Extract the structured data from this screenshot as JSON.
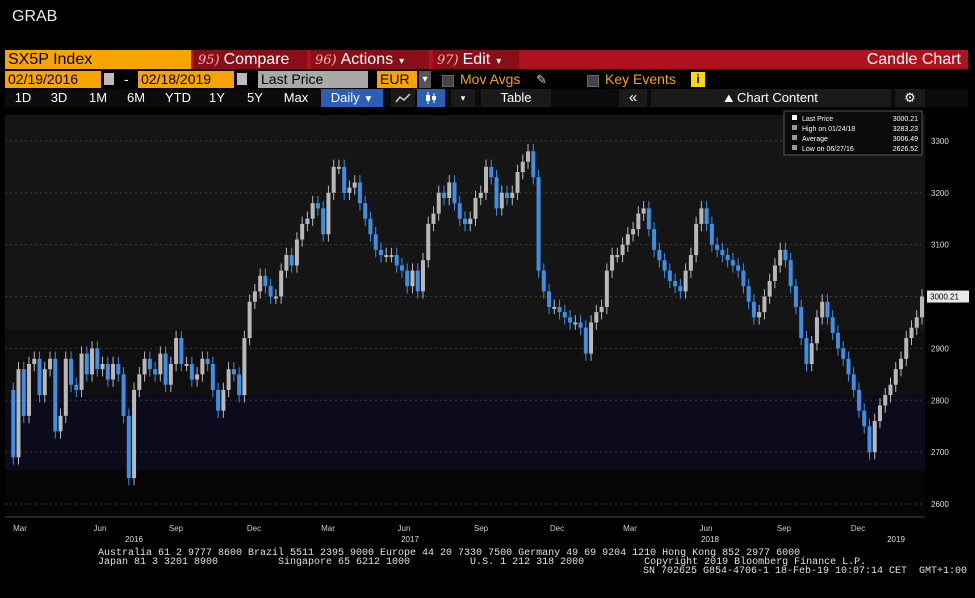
{
  "window_title": "GRAB",
  "toolbar": {
    "ticker": "SX5P Index",
    "menus": [
      {
        "num": "95)",
        "label": "Compare"
      },
      {
        "num": "96)",
        "label": "Actions"
      },
      {
        "num": "97)",
        "label": "Edit"
      }
    ],
    "chart_type": "Candle Chart"
  },
  "settings": {
    "start_date": "02/19/2016",
    "dash": "-",
    "end_date": "02/18/2019",
    "price_field": "Last Price",
    "currency": "EUR",
    "mov_avgs": "Mov Avgs",
    "key_events": "Key Events",
    "info": "i"
  },
  "periods": [
    "1D",
    "3D",
    "1M",
    "6M",
    "YTD",
    "1Y",
    "5Y",
    "Max"
  ],
  "frequency": "Daily",
  "table_label": "Table",
  "collapse_label": "«",
  "chart_content_label": "Chart Content",
  "colors": {
    "up": "#b8b8b8",
    "down": "#3d8fe6",
    "accent": "#f7a300",
    "bar": "#b0111e"
  },
  "legend": [
    {
      "label": "Last Price",
      "value": "3000.21"
    },
    {
      "label": "High on 01/24/18",
      "value": "3283.23"
    },
    {
      "label": "Average",
      "value": "3006.49"
    },
    {
      "label": "Low on 06/27/16",
      "value": "2626.52"
    }
  ],
  "chart_data": {
    "type": "line",
    "ylim": [
      2575,
      3350
    ],
    "yticks": [
      2600,
      2700,
      2800,
      2900,
      3000,
      3100,
      3200,
      3300
    ],
    "ytick_labels": [
      "2600",
      "2700",
      "2800",
      "2900",
      "3000",
      "3100",
      "3200",
      "3300"
    ],
    "last_price_label": "3000.21",
    "x_month_labels": [
      "Mar",
      "Jun",
      "Sep",
      "Dec",
      "Mar",
      "Jun",
      "Sep",
      "Dec",
      "Mar",
      "Jun",
      "Sep",
      "Dec"
    ],
    "x_year_labels": [
      "2016",
      "2017",
      "2018",
      "2019"
    ],
    "series": [
      {
        "values": [
          2820,
          2690,
          2860,
          2770,
          2870,
          2880,
          2810,
          2860,
          2880,
          2740,
          2770,
          2880,
          2830,
          2820,
          2890,
          2850,
          2900,
          2860,
          2870,
          2840,
          2870,
          2850,
          2770,
          2650,
          2820,
          2850,
          2880,
          2860,
          2850,
          2890,
          2830,
          2870,
          2920,
          2870,
          2870,
          2840,
          2850,
          2880,
          2870,
          2820,
          2780,
          2820,
          2860,
          2850,
          2810,
          2920,
          2990,
          3010,
          3040,
          3020,
          3000,
          3000,
          3050,
          3080,
          3060,
          3110,
          3140,
          3150,
          3180,
          3170,
          3120,
          3200,
          3250,
          3250,
          3200,
          3210,
          3220,
          3180,
          3150,
          3120,
          3090,
          3080,
          3080,
          3080,
          3060,
          3050,
          3020,
          3050,
          3010,
          3070,
          3140,
          3160,
          3200,
          3190,
          3220,
          3180,
          3150,
          3140,
          3150,
          3190,
          3200,
          3250,
          3230,
          3170,
          3200,
          3190,
          3200,
          3240,
          3260,
          3280,
          3230,
          3050,
          3010,
          2980,
          2980,
          2970,
          2960,
          2950,
          2950,
          2940,
          2890,
          2950,
          2970,
          2980,
          3050,
          3080,
          3080,
          3100,
          3120,
          3130,
          3160,
          3170,
          3130,
          3090,
          3070,
          3050,
          3030,
          3020,
          3010,
          3050,
          3080,
          3140,
          3170,
          3140,
          3100,
          3090,
          3080,
          3070,
          3060,
          3050,
          3020,
          2990,
          2960,
          2970,
          3000,
          3030,
          3060,
          3090,
          3070,
          3020,
          2980,
          2920,
          2870,
          2910,
          2960,
          2990,
          2960,
          2930,
          2900,
          2880,
          2850,
          2820,
          2780,
          2750,
          2700,
          2760,
          2790,
          2810,
          2830,
          2860,
          2880,
          2920,
          2940,
          2960,
          3000
        ]
      }
    ]
  },
  "footer": {
    "line1": "Australia 61 2 9777 8600 Brazil 5511 2395 9000 Europe 44 20 7330 7500 Germany 49 69 9204 1210 Hong Kong 852 2977 6000",
    "line2": "Japan 81 3 3201 8900          Singapore 65 6212 1000          U.S. 1 212 318 2000          Copyright 2019 Bloomberg Finance L.P.",
    "line3": "SN 702625 G854-4706-1 18-Feb-19 10:07:14 CET  GMT+1:00"
  }
}
